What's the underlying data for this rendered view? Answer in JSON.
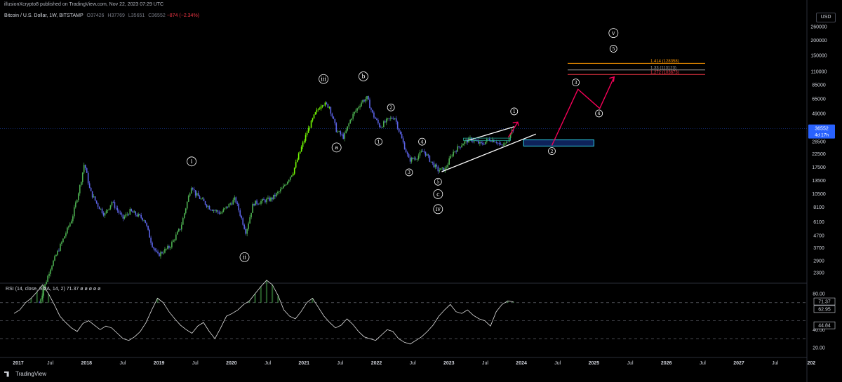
{
  "header": {
    "publisher_line": "illusionXcrypto8 published on TradingView.com, Nov 22, 2023 07:29 UTC",
    "symbol": "Bitcoin / U.S. Dollar, 1W, BITSTAMP",
    "o_label": "O",
    "o_value": "37426",
    "h_label": "H",
    "h_value": "37769",
    "l_label": "L",
    "l_value": "35651",
    "c_label": "C",
    "c_value": "36552",
    "change": "−874 (−2.34%)",
    "currency_button": "USD"
  },
  "rsi": {
    "label": "RSI (14, close, SMA, 14, 2)",
    "value": "71.37",
    "extra": "ø ø ø ø ø",
    "axis_ticks": [
      "80.00",
      "40.00",
      "20.00"
    ],
    "badges": [
      "71.37",
      "62.95",
      "44.84"
    ]
  },
  "price_badge": {
    "value": "36552",
    "countdown": "4d 17h"
  },
  "fib_levels": [
    {
      "label": "1.414 (128358)",
      "value": 128358,
      "color": "#ff9800"
    },
    {
      "label": "1.33 (113123)",
      "value": 113123,
      "color": "#9e9e9e"
    },
    {
      "label": "1.272 (103673)",
      "value": 103673,
      "color": "#f23645"
    }
  ],
  "wave_labels": {
    "circled": [
      "i",
      "ii",
      "iii",
      "iv",
      "v",
      "a",
      "b",
      "c",
      "1",
      "2",
      "3",
      "4",
      "5"
    ]
  },
  "footer": {
    "brand": "TradingView"
  },
  "colors": {
    "up": "#4caf50",
    "bright_up": "#76ff03",
    "down": "#5b63e6",
    "projection": "#f50057",
    "accent_blue": "#2962ff",
    "text": "#d1d4dc",
    "muted": "#787b86"
  },
  "chart_data": [
    {
      "type": "candlestick",
      "title": "Bitcoin / U.S. Dollar, 1W, BITSTAMP",
      "y_scale": "log",
      "y_ticks": [
        2300,
        2900,
        3700,
        4700,
        6100,
        8100,
        10500,
        13500,
        17500,
        22500,
        28500,
        36500,
        49000,
        65000,
        85000,
        110000,
        150000,
        200000,
        260000
      ],
      "x_ticks": [
        "2017",
        "Jul",
        "2018",
        "Jul",
        "2019",
        "Jul",
        "2020",
        "Jul",
        "2021",
        "Jul",
        "2022",
        "Jul",
        "2023",
        "Jul",
        "2024",
        "Jul",
        "2025",
        "Jul",
        "2026",
        "Jul",
        "2027",
        "Jul",
        "202"
      ],
      "price_path": [
        {
          "t": 2017.35,
          "p": 1300
        },
        {
          "t": 2017.5,
          "p": 2500
        },
        {
          "t": 2017.65,
          "p": 4000
        },
        {
          "t": 2017.8,
          "p": 6500
        },
        {
          "t": 2017.92,
          "p": 13000
        },
        {
          "t": 2017.97,
          "p": 19000
        },
        {
          "t": 2018.05,
          "p": 11000
        },
        {
          "t": 2018.15,
          "p": 8500
        },
        {
          "t": 2018.25,
          "p": 7000
        },
        {
          "t": 2018.35,
          "p": 9000
        },
        {
          "t": 2018.5,
          "p": 6500
        },
        {
          "t": 2018.6,
          "p": 7500
        },
        {
          "t": 2018.8,
          "p": 6400
        },
        {
          "t": 2018.9,
          "p": 4000
        },
        {
          "t": 2018.98,
          "p": 3200
        },
        {
          "t": 2019.15,
          "p": 3800
        },
        {
          "t": 2019.3,
          "p": 5500
        },
        {
          "t": 2019.45,
          "p": 12500
        },
        {
          "t": 2019.5,
          "p": 10500
        },
        {
          "t": 2019.7,
          "p": 8000
        },
        {
          "t": 2019.85,
          "p": 7200
        },
        {
          "t": 2020.05,
          "p": 9500
        },
        {
          "t": 2020.2,
          "p": 5000
        },
        {
          "t": 2020.3,
          "p": 8700
        },
        {
          "t": 2020.55,
          "p": 9500
        },
        {
          "t": 2020.7,
          "p": 11500
        },
        {
          "t": 2020.85,
          "p": 16000
        },
        {
          "t": 2020.95,
          "p": 24000
        },
        {
          "t": 2021.05,
          "p": 35000
        },
        {
          "t": 2021.15,
          "p": 48000
        },
        {
          "t": 2021.25,
          "p": 60000
        },
        {
          "t": 2021.35,
          "p": 56000
        },
        {
          "t": 2021.45,
          "p": 35000
        },
        {
          "t": 2021.55,
          "p": 31000
        },
        {
          "t": 2021.65,
          "p": 45000
        },
        {
          "t": 2021.8,
          "p": 62000
        },
        {
          "t": 2021.87,
          "p": 66000
        },
        {
          "t": 2021.95,
          "p": 48000
        },
        {
          "t": 2022.05,
          "p": 38000
        },
        {
          "t": 2022.15,
          "p": 43000
        },
        {
          "t": 2022.25,
          "p": 46000
        },
        {
          "t": 2022.35,
          "p": 30000
        },
        {
          "t": 2022.45,
          "p": 20000
        },
        {
          "t": 2022.55,
          "p": 21000
        },
        {
          "t": 2022.65,
          "p": 24000
        },
        {
          "t": 2022.75,
          "p": 19500
        },
        {
          "t": 2022.85,
          "p": 16500
        },
        {
          "t": 2022.95,
          "p": 16800
        },
        {
          "t": 2023.05,
          "p": 23000
        },
        {
          "t": 2023.2,
          "p": 28000
        },
        {
          "t": 2023.3,
          "p": 30000
        },
        {
          "t": 2023.45,
          "p": 27000
        },
        {
          "t": 2023.55,
          "p": 30000
        },
        {
          "t": 2023.65,
          "p": 29000
        },
        {
          "t": 2023.72,
          "p": 26000
        },
        {
          "t": 2023.8,
          "p": 28000
        },
        {
          "t": 2023.85,
          "p": 34500
        },
        {
          "t": 2023.89,
          "p": 36552
        }
      ],
      "projection_path": [
        {
          "t": 2024.42,
          "p": 26500
        },
        {
          "t": 2024.78,
          "p": 78000
        },
        {
          "t": 2025.08,
          "p": 54000
        },
        {
          "t": 2025.28,
          "p": 99000
        }
      ],
      "ascending_wedge": {
        "lower": [
          {
            "t": 2022.9,
            "p": 16000
          },
          {
            "t": 2024.2,
            "p": 33000
          }
        ],
        "upper": [
          {
            "t": 2023.25,
            "p": 29000
          },
          {
            "t": 2023.9,
            "p": 38000
          }
        ]
      },
      "support_box": {
        "t_start": 2024.03,
        "t_end": 2025.0,
        "p_low": 26200,
        "p_high": 29500
      }
    },
    {
      "type": "line",
      "title": "RSI (14, close, SMA, 14, 2)",
      "y_ticks": [
        80,
        40,
        20
      ],
      "levels": [
        70,
        50,
        30
      ],
      "x_range": [
        2017.0,
        2023.89
      ],
      "values": [
        58,
        62,
        70,
        75,
        82,
        90,
        80,
        68,
        55,
        48,
        42,
        38,
        47,
        50,
        45,
        40,
        44,
        42,
        36,
        30,
        28,
        32,
        38,
        48,
        62,
        75,
        70,
        60,
        52,
        45,
        40,
        36,
        44,
        48,
        38,
        30,
        42,
        55,
        58,
        62,
        68,
        72,
        80,
        88,
        95,
        90,
        78,
        62,
        55,
        52,
        60,
        70,
        75,
        65,
        55,
        48,
        42,
        45,
        52,
        46,
        38,
        32,
        30,
        28,
        34,
        40,
        38,
        30,
        26,
        24,
        28,
        32,
        38,
        45,
        55,
        62,
        68,
        60,
        58,
        62,
        56,
        52,
        50,
        44,
        60,
        68,
        72,
        71
      ]
    }
  ]
}
